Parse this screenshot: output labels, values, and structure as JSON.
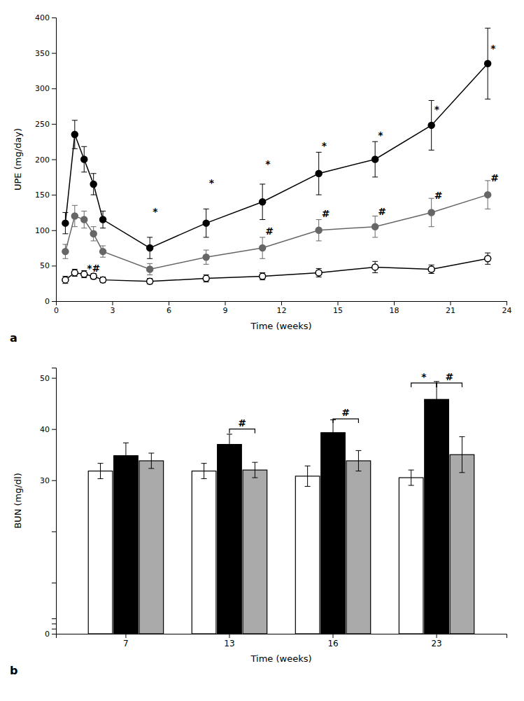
{
  "chart_data": [
    {
      "type": "line",
      "panel_label": "a",
      "xlabel": "Time (weeks)",
      "ylabel": "UPE (mg/day)",
      "xlim": [
        0,
        24
      ],
      "ylim": [
        0,
        400
      ],
      "xticks": [
        0,
        3,
        6,
        9,
        12,
        15,
        18,
        21,
        24
      ],
      "yticks": [
        0,
        50,
        100,
        150,
        200,
        250,
        300,
        350,
        400
      ],
      "x": [
        0.5,
        1,
        1.5,
        2,
        2.5,
        5,
        8,
        11,
        14,
        17,
        20,
        23
      ],
      "series": [
        {
          "color": "black",
          "marker": "filled",
          "values": [
            110,
            235,
            200,
            165,
            115,
            75,
            110,
            140,
            180,
            200,
            248,
            335
          ],
          "errors": [
            15,
            20,
            18,
            15,
            12,
            15,
            20,
            25,
            30,
            25,
            35,
            50
          ]
        },
        {
          "color": "#666666",
          "marker": "filled",
          "values": [
            70,
            120,
            115,
            95,
            70,
            45,
            62,
            75,
            100,
            105,
            125,
            150
          ],
          "errors": [
            10,
            15,
            12,
            10,
            8,
            8,
            10,
            15,
            15,
            15,
            20,
            20
          ]
        },
        {
          "color": "black",
          "marker": "open",
          "values": [
            30,
            40,
            38,
            35,
            30,
            28,
            32,
            35,
            40,
            48,
            45,
            60
          ],
          "errors": [
            5,
            5,
            5,
            4,
            4,
            4,
            5,
            5,
            6,
            8,
            6,
            8
          ]
        }
      ],
      "annotations": [
        {
          "x": 5,
          "y": 118,
          "text": "*"
        },
        {
          "x": 8,
          "y": 158,
          "text": "*"
        },
        {
          "x": 11,
          "y": 185,
          "text": "*"
        },
        {
          "x": 14,
          "y": 210,
          "text": "*"
        },
        {
          "x": 17,
          "y": 225,
          "text": "*"
        },
        {
          "x": 20,
          "y": 262,
          "text": "*"
        },
        {
          "x": 23,
          "y": 348,
          "text": "*"
        },
        {
          "x": 1.5,
          "y": 38,
          "text": "*#"
        },
        {
          "x": 11,
          "y": 90,
          "text": "#"
        },
        {
          "x": 14,
          "y": 115,
          "text": "#"
        },
        {
          "x": 17,
          "y": 118,
          "text": "#"
        },
        {
          "x": 20,
          "y": 140,
          "text": "#"
        },
        {
          "x": 23,
          "y": 165,
          "text": "#"
        }
      ]
    },
    {
      "type": "bar",
      "panel_label": "b",
      "xlabel": "Time (weeks)",
      "ylabel": "BUN (mg/dl)",
      "categories": [
        "7",
        "13",
        "16",
        "23"
      ],
      "ylim": [
        0,
        52
      ],
      "yticks": [
        0,
        {
          "value": 1,
          "label": null
        },
        {
          "value": 2,
          "label": null
        },
        {
          "value": 3,
          "label": null
        },
        {
          "value": 10,
          "label": null
        },
        {
          "value": 20,
          "label": null
        },
        30,
        40,
        50
      ],
      "series": [
        {
          "color": "white",
          "values": [
            31.8,
            31.8,
            30.8,
            30.5
          ],
          "errors": [
            1.5,
            1.5,
            2.0,
            1.5
          ]
        },
        {
          "color": "black",
          "values": [
            34.8,
            37.0,
            39.3,
            45.8
          ],
          "errors": [
            2.5,
            2.0,
            2.5,
            3.5
          ]
        },
        {
          "color": "#aaaaaa",
          "values": [
            33.8,
            32.0,
            33.8,
            35.0
          ],
          "errors": [
            1.5,
            1.5,
            2.0,
            3.5
          ]
        }
      ],
      "brackets": [
        {
          "category": "13",
          "series": [
            1,
            2
          ],
          "y": 40,
          "text": "#"
        },
        {
          "category": "16",
          "series": [
            1,
            2
          ],
          "y": 42,
          "text": "#"
        },
        {
          "category": "23",
          "series": [
            0,
            1
          ],
          "y": 49,
          "text": "*"
        },
        {
          "category": "23",
          "series": [
            1,
            2
          ],
          "y": 49,
          "text": "#"
        }
      ]
    }
  ]
}
